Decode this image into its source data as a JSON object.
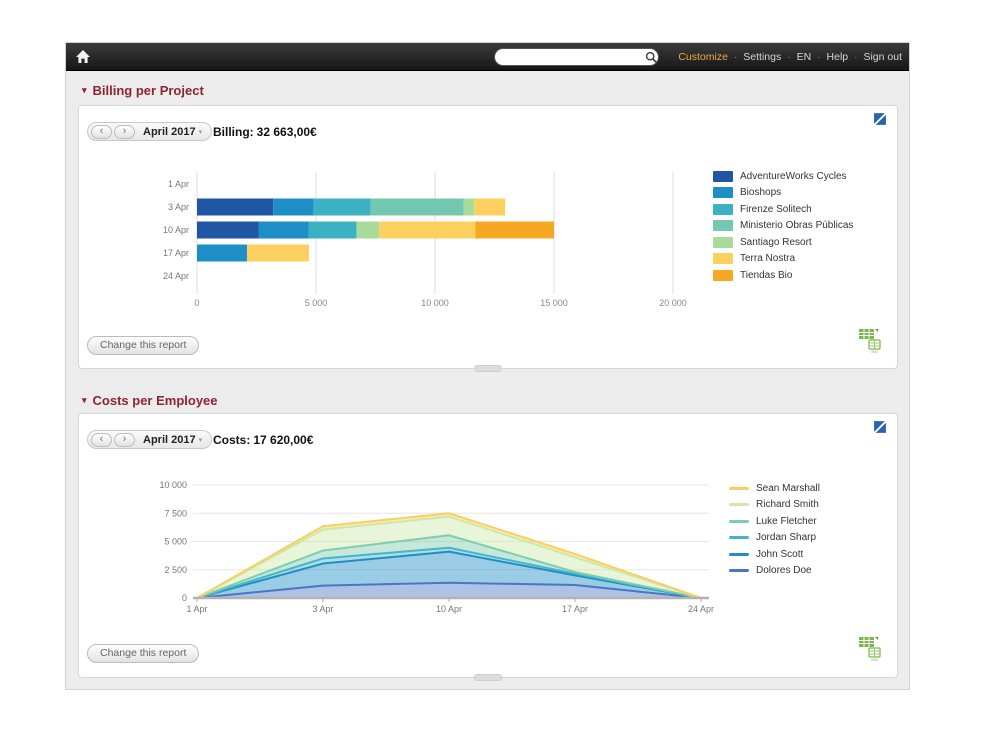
{
  "topbar": {
    "search_value": "",
    "links": {
      "customize": "Customize",
      "settings": "Settings",
      "language": "EN",
      "help": "Help",
      "signout": "Sign out"
    },
    "separator": "·"
  },
  "icons": {
    "prev": "‹",
    "next": "›",
    "caret": "▾",
    "collapse": "▾"
  },
  "panels": [
    {
      "title": "Billing per Project",
      "period": "April 2017",
      "summary_label": "Billing:",
      "summary_value": "32 663,00€",
      "change_report": "Change this report"
    },
    {
      "title": "Costs per Employee",
      "period": "April 2017",
      "summary_label": "Costs:",
      "summary_value": "17 620,00€",
      "change_report": "Change this report"
    }
  ],
  "chart_data": [
    {
      "type": "bar",
      "title": "Billing per Project",
      "orientation": "horizontal",
      "stacked": true,
      "categories": [
        "1 Apr",
        "3 Apr",
        "10 Apr",
        "17 Apr",
        "24 Apr"
      ],
      "series": [
        {
          "name": "AdventureWorks Cycles",
          "color": "#1f57a5",
          "values": [
            0,
            3200,
            2600,
            0,
            0
          ]
        },
        {
          "name": "Bioshops",
          "color": "#1e8fc6",
          "values": [
            0,
            1700,
            2100,
            2100,
            0
          ]
        },
        {
          "name": "Firenze Solitech",
          "color": "#3cb1c3",
          "values": [
            0,
            2400,
            2000,
            0,
            0
          ]
        },
        {
          "name": "Ministerio Obras Públicas",
          "color": "#74c8b2",
          "values": [
            0,
            3900,
            0,
            0,
            0
          ]
        },
        {
          "name": "Santiago Resort",
          "color": "#a8dc9b",
          "values": [
            0,
            450,
            950,
            0,
            0
          ]
        },
        {
          "name": "Terra Nostra",
          "color": "#fbd05f",
          "values": [
            0,
            1300,
            4050,
            2600,
            0
          ]
        },
        {
          "name": "Tiendas Bio",
          "color": "#f7a823",
          "values": [
            0,
            0,
            3300,
            0,
            0
          ]
        }
      ],
      "xlim": [
        0,
        20000
      ],
      "xticks": [
        0,
        5000,
        10000,
        15000,
        20000
      ],
      "xtick_labels": [
        "0",
        "5 000",
        "10 000",
        "15 000",
        "20 000"
      ],
      "grid": "vertical",
      "legend_position": "right"
    },
    {
      "type": "area",
      "title": "Costs per Employee",
      "stacked": true,
      "categories": [
        "1 Apr",
        "3 Apr",
        "10 Apr",
        "17 Apr",
        "24 Apr"
      ],
      "series": [
        {
          "name": "Dolores Doe",
          "color": "#4a77c4",
          "values": [
            0,
            1100,
            1350,
            1150,
            0
          ]
        },
        {
          "name": "John Scott",
          "color": "#1e8fc6",
          "values": [
            0,
            1950,
            2750,
            850,
            0
          ]
        },
        {
          "name": "Jordan Sharp",
          "color": "#45b5c8",
          "values": [
            0,
            450,
            350,
            150,
            0
          ]
        },
        {
          "name": "Luke Fletcher",
          "color": "#7fccb0",
          "values": [
            0,
            700,
            1100,
            150,
            0
          ]
        },
        {
          "name": "Richard Smith",
          "color": "#cde9a8",
          "values": [
            0,
            1850,
            1650,
            1300,
            0
          ]
        },
        {
          "name": "Sean Marshall",
          "color": "#f8cf60",
          "values": [
            0,
            300,
            300,
            300,
            0
          ]
        }
      ],
      "ylim": [
        0,
        10000
      ],
      "yticks": [
        0,
        2500,
        5000,
        7500,
        10000
      ],
      "ytick_labels": [
        "0",
        "2 500",
        "5 000",
        "7 500",
        "10 000"
      ],
      "fill_opacity": 0.45,
      "grid": "horizontal",
      "legend_position": "right",
      "legend_reverse": true
    }
  ]
}
